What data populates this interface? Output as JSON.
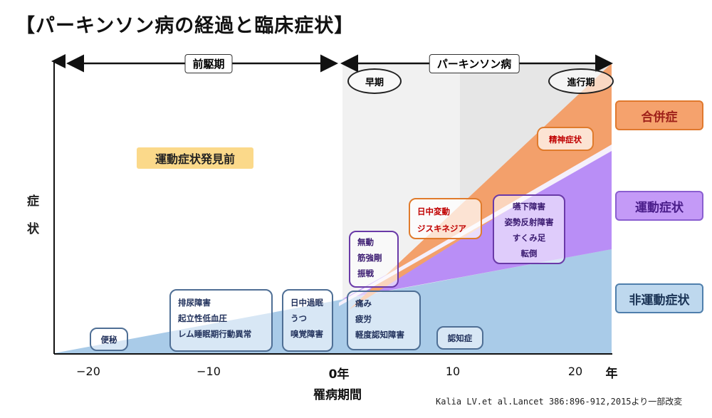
{
  "title": "【パーキンソン病の経過と臨床症状】",
  "y_axis_label": [
    "症",
    "状"
  ],
  "x_axis": {
    "label": "罹病期間",
    "ticks": [
      "−20",
      "−10",
      "0年",
      "10",
      "20",
      "年"
    ]
  },
  "phases": {
    "prodromal": "前駆期",
    "parkinsons": "パーキンソン病",
    "early": "早期",
    "advanced": "進行期"
  },
  "pre_motor_label": "運動症状発見前",
  "symptom_boxes": {
    "constipation": [
      "便秘"
    ],
    "autonomic": [
      "排尿障害",
      "起立性低血圧",
      "レム睡眠期行動異常"
    ],
    "sleep_mood": [
      "日中過眠",
      "うつ",
      "嗅覚障害"
    ],
    "early_nonmotor": [
      "痛み",
      "疲労",
      "軽度認知障害"
    ],
    "dementia": [
      "認知症"
    ],
    "cardinal_motor": [
      "無動",
      "筋強剛",
      "振戦"
    ],
    "fluctuations": [
      "日中変動",
      "ジスキネジア"
    ],
    "axial_motor": [
      "嚥下障害",
      "姿勢反射障害",
      "すくみ足",
      "転倒"
    ],
    "psychosis": [
      "精神症状"
    ]
  },
  "legend": {
    "complications": "合併症",
    "motor": "運動症状",
    "nonmotor": "非運動症状"
  },
  "colors": {
    "nonmotor_fill": "#a9cbe8",
    "motor_fill": "#b98ef6",
    "complication_fill": "#f3a06b",
    "shaded_region": "#ededed"
  },
  "citation": "Kalia LV.et al.Lancet 386:896-912,2015より一部改変"
}
